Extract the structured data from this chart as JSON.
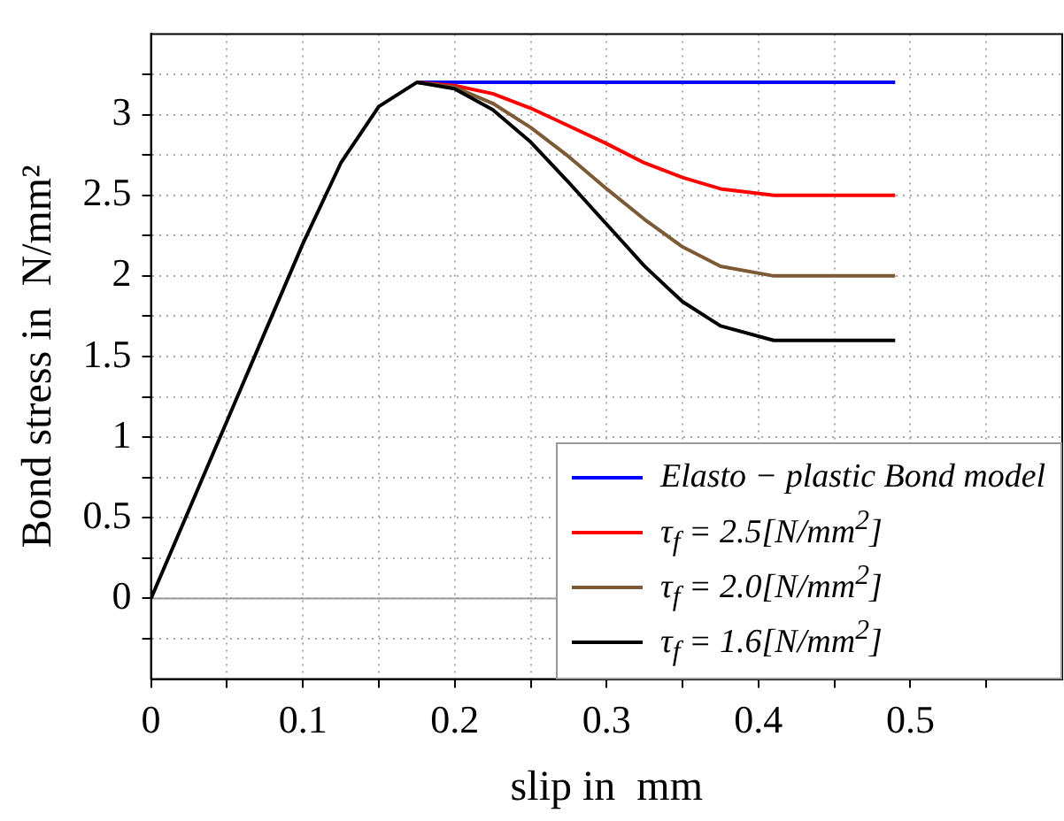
{
  "chart_data": {
    "type": "line",
    "xlabel": "slip in  mm",
    "ylabel": "Bond stress in  N/mm²",
    "xlim": [
      0,
      0.6
    ],
    "ylim": [
      -0.5,
      3.5
    ],
    "xticks": [
      0,
      {
        "value": 0.05,
        "label": null
      },
      0.1,
      {
        "value": 0.15,
        "label": null
      },
      0.2,
      {
        "value": 0.25,
        "label": null
      },
      0.3,
      {
        "value": 0.35,
        "label": null
      },
      0.4,
      {
        "value": 0.45,
        "label": null
      },
      0.5,
      {
        "value": 0.55,
        "label": null
      }
    ],
    "yticks": [
      {
        "value": -0.25,
        "label": null
      },
      0,
      {
        "value": 0.25,
        "label": null
      },
      0.5,
      {
        "value": 0.75,
        "label": null
      },
      1,
      {
        "value": 1.25,
        "label": null
      },
      1.5,
      {
        "value": 1.75,
        "label": null
      },
      2,
      {
        "value": 2.25,
        "label": null
      },
      2.5,
      {
        "value": 2.75,
        "label": null
      },
      3,
      {
        "value": 3.25,
        "label": null
      }
    ],
    "grid": true,
    "legend": "bottom right",
    "line_style": "solid",
    "marker": "none",
    "ref_lines": [
      {
        "axis": "y",
        "value": 0,
        "label": null,
        "color": "#999999"
      }
    ],
    "x": [
      0,
      0.025,
      0.05,
      0.075,
      0.1,
      0.125,
      0.15,
      0.175,
      0.2,
      0.225,
      0.25,
      0.275,
      0.3,
      0.325,
      0.35,
      0.375,
      0.41,
      0.49
    ],
    "series": [
      {
        "name": "Elasto − plastic Bond model",
        "color": "#0000ff",
        "values": [
          null,
          null,
          null,
          null,
          null,
          null,
          null,
          3.2,
          3.2,
          3.2,
          3.2,
          3.2,
          3.2,
          3.2,
          3.2,
          3.2,
          3.2,
          3.2
        ]
      },
      {
        "name": "τ$_{f}$  = 2.5[N/mm$^{2}$]",
        "color": "#ff0000",
        "values": [
          null,
          null,
          null,
          null,
          null,
          null,
          null,
          3.2,
          3.18,
          3.13,
          3.04,
          2.93,
          2.82,
          2.7,
          2.61,
          2.54,
          2.5,
          2.5
        ]
      },
      {
        "name": "τ$_{f}$  = 2.0[N/mm$^{2}$]",
        "color": "#7b5a35",
        "values": [
          null,
          null,
          null,
          null,
          null,
          null,
          null,
          3.2,
          3.17,
          3.07,
          2.92,
          2.74,
          2.54,
          2.35,
          2.18,
          2.06,
          2.0,
          2.0
        ]
      },
      {
        "name": "τ$_{f}$  = 1.6[N/mm$^{2}$]",
        "color": "#000000",
        "values": [
          0,
          0.55,
          1.1,
          1.65,
          2.2,
          2.7,
          3.05,
          3.2,
          3.16,
          3.03,
          2.83,
          2.58,
          2.32,
          2.06,
          1.84,
          1.69,
          1.6,
          1.6
        ]
      }
    ]
  }
}
